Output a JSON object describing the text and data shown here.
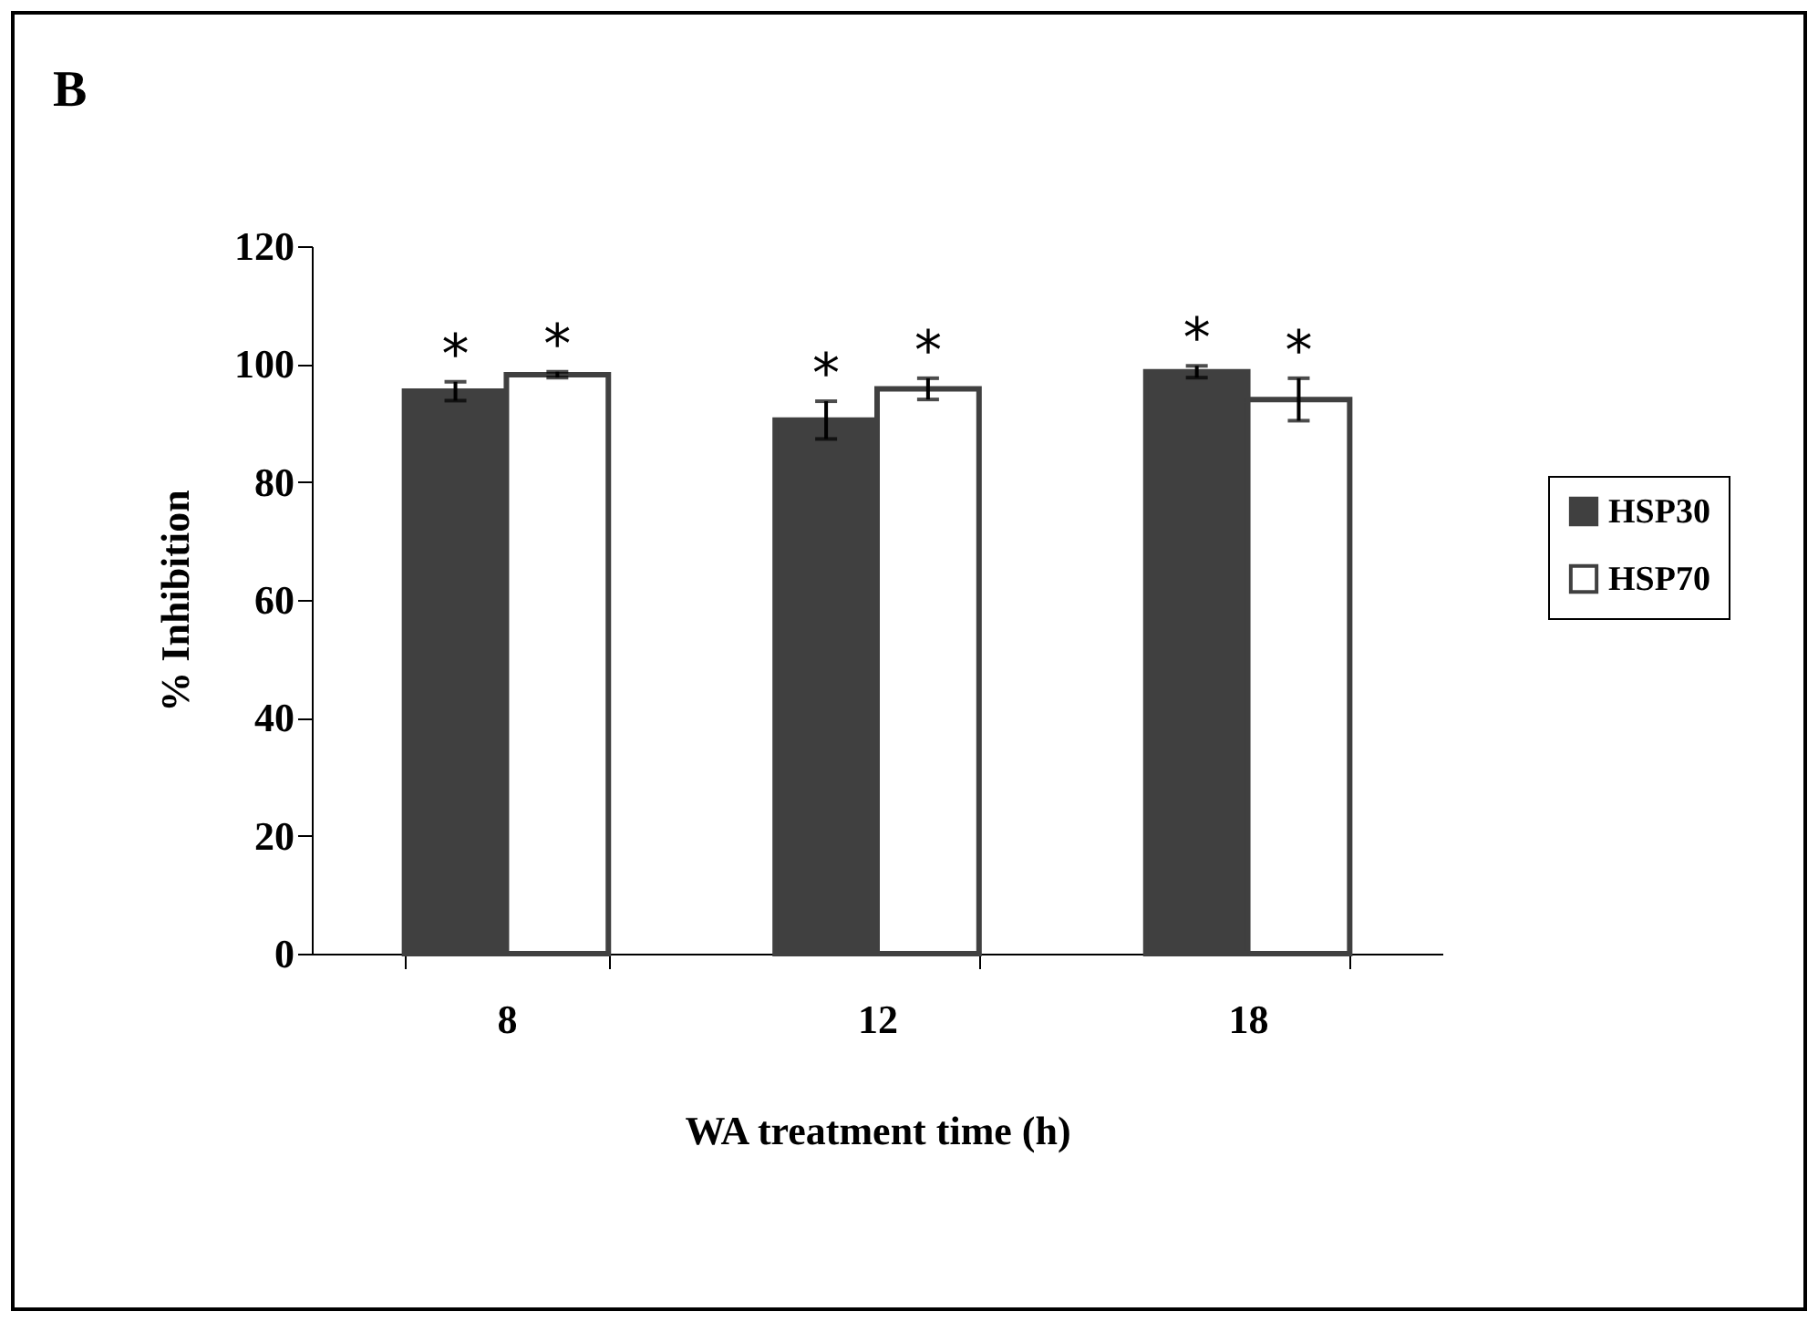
{
  "chart_data": {
    "type": "bar",
    "title": "B",
    "xlabel": "WA treatment time (h)",
    "ylabel": "% Inhibition",
    "categories": [
      "8",
      "12",
      "18"
    ],
    "series": [
      {
        "name": "HSP30",
        "color": "#404040",
        "values": [
          95.4,
          90.5,
          98.7
        ],
        "errors": [
          1.6,
          3.2,
          1
        ]
      },
      {
        "name": "HSP70",
        "color": "#ffffff",
        "values": [
          98.2,
          95.8,
          94
        ],
        "errors": [
          0.5,
          1.8,
          3.6
        ]
      }
    ],
    "ylim": [
      0,
      120
    ],
    "yticks": [
      0,
      20,
      40,
      60,
      80,
      100,
      120
    ],
    "grid": false,
    "legend": "right",
    "annotations": [
      "*",
      "*",
      "*",
      "*",
      "*",
      "*"
    ]
  }
}
